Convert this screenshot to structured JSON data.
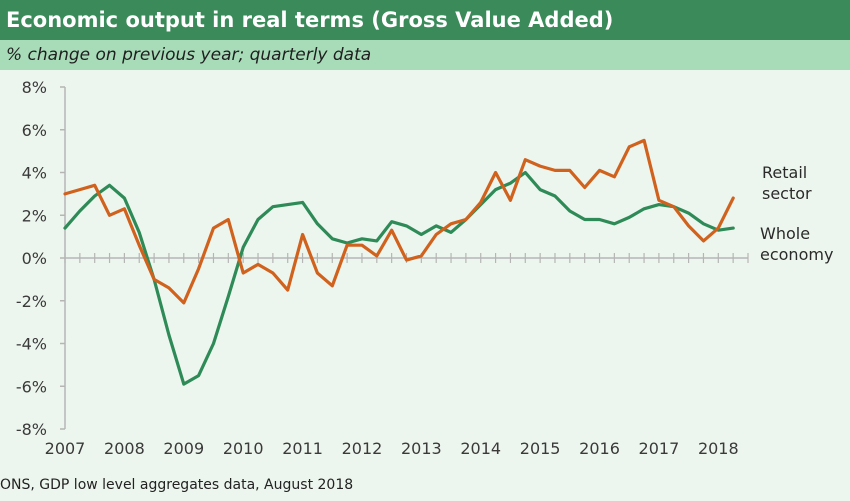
{
  "title": "Economic output in real terms (Gross Value Added)",
  "subtitle": "% change on previous year; quarterly data",
  "source": "ONS, GDP low level aggregates data, August 2018",
  "chart_data": {
    "type": "line",
    "xlim": [
      2007,
      2018.5
    ],
    "ylim": [
      -8,
      8
    ],
    "y_ticks": [
      8,
      6,
      4,
      2,
      0,
      -2,
      -4,
      -6,
      -8
    ],
    "y_tick_labels": [
      "8%",
      "6%",
      "4%",
      "2%",
      "0%",
      "-2%",
      "-4%",
      "-6%",
      "-8%"
    ],
    "x_tick_labels": [
      "2007",
      "2008",
      "2009",
      "2010",
      "2011",
      "2012",
      "2013",
      "2014",
      "2015",
      "2016",
      "2017",
      "2018"
    ],
    "grid": false,
    "colors": {
      "retail": "#d0621e",
      "whole": "#2e8b57"
    },
    "series": [
      {
        "name_lines": [
          "Retail",
          "sector"
        ],
        "key": "retail",
        "x": [
          2007.0,
          2007.25,
          2007.5,
          2007.75,
          2008.0,
          2008.25,
          2008.5,
          2008.75,
          2009.0,
          2009.25,
          2009.5,
          2009.75,
          2010.0,
          2010.25,
          2010.5,
          2010.75,
          2011.0,
          2011.25,
          2011.5,
          2011.75,
          2012.0,
          2012.25,
          2012.5,
          2012.75,
          2013.0,
          2013.25,
          2013.5,
          2013.75,
          2014.0,
          2014.25,
          2014.5,
          2014.75,
          2015.0,
          2015.25,
          2015.5,
          2015.75,
          2016.0,
          2016.25,
          2016.5,
          2016.75,
          2017.0,
          2017.25,
          2017.5,
          2017.75,
          2018.0,
          2018.25
        ],
        "y": [
          3.0,
          3.2,
          3.4,
          2.0,
          2.3,
          0.6,
          -1.0,
          -1.4,
          -2.1,
          -0.5,
          1.4,
          1.8,
          -0.7,
          -0.3,
          -0.7,
          -1.5,
          1.1,
          -0.7,
          -1.3,
          0.6,
          0.6,
          0.1,
          1.3,
          -0.1,
          0.1,
          1.1,
          1.6,
          1.8,
          2.6,
          4.0,
          2.7,
          4.6,
          4.3,
          4.1,
          4.1,
          3.3,
          4.1,
          3.8,
          5.2,
          5.5,
          2.7,
          2.4,
          1.5,
          0.8,
          1.4,
          2.8
        ]
      },
      {
        "name_lines": [
          "Whole",
          "economy"
        ],
        "key": "whole",
        "x": [
          2007.0,
          2007.25,
          2007.5,
          2007.75,
          2008.0,
          2008.25,
          2008.5,
          2008.75,
          2009.0,
          2009.25,
          2009.5,
          2009.75,
          2010.0,
          2010.25,
          2010.5,
          2010.75,
          2011.0,
          2011.25,
          2011.5,
          2011.75,
          2012.0,
          2012.25,
          2012.5,
          2012.75,
          2013.0,
          2013.25,
          2013.5,
          2013.75,
          2014.0,
          2014.25,
          2014.5,
          2014.75,
          2015.0,
          2015.25,
          2015.5,
          2015.75,
          2016.0,
          2016.25,
          2016.5,
          2016.75,
          2017.0,
          2017.25,
          2017.5,
          2017.75,
          2018.0,
          2018.25
        ],
        "y": [
          1.4,
          2.2,
          2.9,
          3.4,
          2.8,
          1.2,
          -1.0,
          -3.6,
          -5.9,
          -5.5,
          -4.0,
          -1.8,
          0.5,
          1.8,
          2.4,
          2.5,
          2.6,
          1.6,
          0.9,
          0.7,
          0.9,
          0.8,
          1.7,
          1.5,
          1.1,
          1.5,
          1.2,
          1.8,
          2.5,
          3.2,
          3.5,
          4.0,
          3.2,
          2.9,
          2.2,
          1.8,
          1.8,
          1.6,
          1.9,
          2.3,
          2.5,
          2.4,
          2.1,
          1.6,
          1.3,
          1.4
        ]
      }
    ]
  }
}
